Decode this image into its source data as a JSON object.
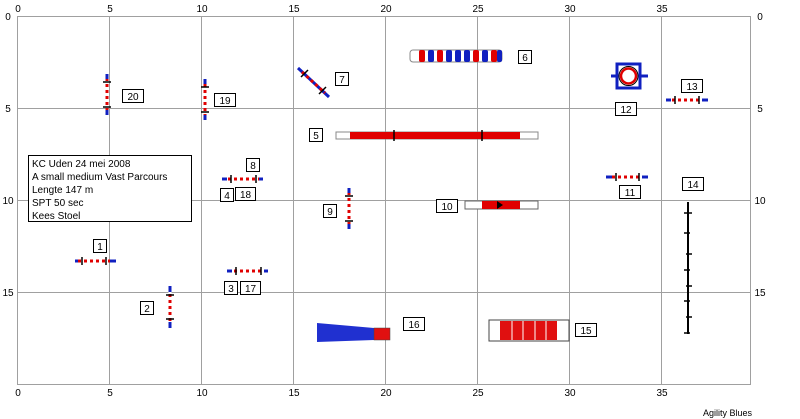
{
  "brand": "Agility Blues",
  "info_lines": [
    "KC Uden 24 mei 2008",
    "A small medium Vast Parcours",
    "Lengte 147 m",
    "SPT 50 sec",
    "Kees Stoel"
  ],
  "axes": {
    "x_ticks": [
      "0",
      "5",
      "10",
      "15",
      "20",
      "25",
      "30",
      "35"
    ],
    "y_ticks": [
      "0",
      "5",
      "10",
      "15"
    ]
  },
  "obstacle_labels": {
    "n1": "1",
    "n2": "2",
    "n3": "3",
    "n4": "4",
    "n5": "5",
    "n6": "6",
    "n7": "7",
    "n8": "8",
    "n9": "9",
    "n10": "10",
    "n11": "11",
    "n12": "12",
    "n13": "13",
    "n14": "14",
    "n15": "15",
    "n16": "16",
    "n17": "17",
    "n18": "18",
    "n19": "19",
    "n20": "20"
  },
  "colors": {
    "grid": "#a0a0a0",
    "bar_red": "#e00000",
    "wing_blue": "#1020c0",
    "tunnel_red": "#e01010",
    "tunnel_blue": "#2030d0"
  }
}
